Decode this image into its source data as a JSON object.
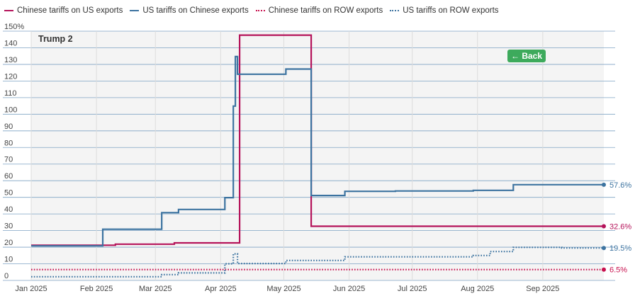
{
  "ui": {
    "back_label": "← Back",
    "panel_label": "Trump 2"
  },
  "chart_data": {
    "type": "line",
    "title": "",
    "xlabel": "",
    "ylabel": "",
    "ylim": [
      0,
      150
    ],
    "yticks": [
      "0",
      "10",
      "20",
      "30",
      "40",
      "50",
      "60",
      "70",
      "80",
      "90",
      "100",
      "110",
      "120",
      "130",
      "140",
      "150%"
    ],
    "xticks": [
      "Jan 2025",
      "Feb 2025",
      "Mar 2025",
      "Apr 2025",
      "May 2025",
      "Jun 2025",
      "Jul 2025",
      "Aug 2025",
      "Sep 2025"
    ],
    "xtick_dates": [
      "2025-01-01",
      "2025-02-01",
      "2025-03-01",
      "2025-04-01",
      "2025-05-01",
      "2025-06-01",
      "2025-07-01",
      "2025-08-01",
      "2025-09-01"
    ],
    "xlim": [
      "2025-01-01",
      "2025-09-30"
    ],
    "grid": true,
    "legend_position": "top-left",
    "series": [
      {
        "name": "Chinese tariffs on US exports",
        "color": "#b5135a",
        "style": "solid",
        "end_label": "32.6%",
        "points": [
          [
            "2025-01-01",
            21.2
          ],
          [
            "2025-02-10",
            21.2
          ],
          [
            "2025-02-10",
            21.8
          ],
          [
            "2025-03-10",
            21.8
          ],
          [
            "2025-03-10",
            22.6
          ],
          [
            "2025-04-10",
            22.6
          ],
          [
            "2025-04-10",
            147.6
          ],
          [
            "2025-05-14",
            147.6
          ],
          [
            "2025-05-14",
            32.6
          ],
          [
            "2025-09-30",
            32.6
          ]
        ]
      },
      {
        "name": "US tariffs on Chinese exports",
        "color": "#3c73a0",
        "style": "solid",
        "end_label": "57.6%",
        "points": [
          [
            "2025-01-01",
            20.8
          ],
          [
            "2025-02-04",
            20.8
          ],
          [
            "2025-02-04",
            30.8
          ],
          [
            "2025-03-04",
            30.8
          ],
          [
            "2025-03-04",
            40.8
          ],
          [
            "2025-03-12",
            40.8
          ],
          [
            "2025-03-12",
            42.7
          ],
          [
            "2025-04-03",
            42.7
          ],
          [
            "2025-04-03",
            49.8
          ],
          [
            "2025-04-07",
            49.8
          ],
          [
            "2025-04-07",
            104.9
          ],
          [
            "2025-04-08",
            104.9
          ],
          [
            "2025-04-08",
            134.7
          ],
          [
            "2025-04-09",
            134.7
          ],
          [
            "2025-04-09",
            124.1
          ],
          [
            "2025-05-02",
            124.1
          ],
          [
            "2025-05-02",
            127.2
          ],
          [
            "2025-05-14",
            127.2
          ],
          [
            "2025-05-14",
            51.1
          ],
          [
            "2025-05-30",
            51.1
          ],
          [
            "2025-05-30",
            53.6
          ],
          [
            "2025-06-23",
            53.6
          ],
          [
            "2025-06-23",
            53.8
          ],
          [
            "2025-07-30",
            53.8
          ],
          [
            "2025-07-30",
            54.2
          ],
          [
            "2025-08-18",
            54.2
          ],
          [
            "2025-08-18",
            57.6
          ],
          [
            "2025-09-30",
            57.6
          ]
        ]
      },
      {
        "name": "Chinese tariffs on ROW exports",
        "color": "#c8104e",
        "style": "dotted",
        "end_label": "6.5%",
        "points": [
          [
            "2025-01-01",
            6.5
          ],
          [
            "2025-09-30",
            6.5
          ]
        ]
      },
      {
        "name": "US tariffs on ROW exports",
        "color": "#3c73a0",
        "style": "dotted",
        "end_label": "19.5%",
        "points": [
          [
            "2025-01-01",
            2.2
          ],
          [
            "2025-03-04",
            2.2
          ],
          [
            "2025-03-04",
            3.5
          ],
          [
            "2025-03-12",
            3.5
          ],
          [
            "2025-03-12",
            4.5
          ],
          [
            "2025-04-03",
            4.5
          ],
          [
            "2025-04-03",
            10.0
          ],
          [
            "2025-04-07",
            10.0
          ],
          [
            "2025-04-07",
            16.0
          ],
          [
            "2025-04-09",
            16.0
          ],
          [
            "2025-04-09",
            10.2
          ],
          [
            "2025-05-02",
            10.2
          ],
          [
            "2025-05-02",
            12.0
          ],
          [
            "2025-05-30",
            12.0
          ],
          [
            "2025-05-30",
            14.2
          ],
          [
            "2025-07-30",
            14.2
          ],
          [
            "2025-07-30",
            15.0
          ],
          [
            "2025-08-07",
            15.0
          ],
          [
            "2025-08-07",
            17.4
          ],
          [
            "2025-08-18",
            17.4
          ],
          [
            "2025-08-18",
            19.9
          ],
          [
            "2025-09-10",
            19.9
          ],
          [
            "2025-09-10",
            19.5
          ],
          [
            "2025-09-30",
            19.5
          ]
        ]
      }
    ]
  }
}
